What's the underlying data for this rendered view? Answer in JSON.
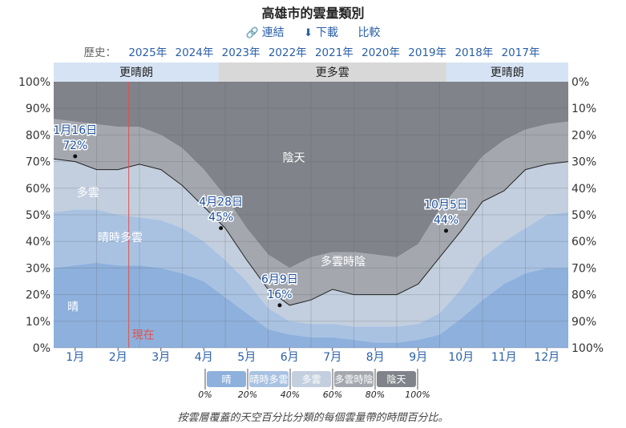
{
  "header": {
    "title": "高雄市的雲量類別",
    "link_label": "連結",
    "download_label": "下載",
    "compare_label": "比較",
    "history_label": "歷史：",
    "years": [
      "2025年",
      "2024年",
      "2023年",
      "2022年",
      "2021年",
      "2020年",
      "2019年",
      "2018年",
      "2017年"
    ]
  },
  "footnote": "按雲層覆蓋的天空百分比分類的每個雲量帶的時間百分比。",
  "colors": {
    "clear": "#8eb0dc",
    "mostly_clear": "#a9c2e2",
    "partly_cloudy": "#c3cfde",
    "mostly_cloudy": "#a4a8ae",
    "overcast": "#80838a",
    "now_line": "#e0524f",
    "label_blue": "#1c4f9c"
  },
  "chart_data": {
    "type": "area",
    "x_unit": "month",
    "x": [
      0.0,
      0.5,
      1.0,
      1.5,
      2.0,
      2.5,
      3.0,
      3.5,
      4.0,
      4.5,
      5.0,
      5.5,
      6.0,
      6.5,
      7.0,
      7.5,
      8.0,
      8.5,
      9.0,
      9.5,
      10.0,
      10.5,
      11.0,
      11.5,
      12.0
    ],
    "series": [
      {
        "name": "晴",
        "key": "clear",
        "values": [
          30,
          31,
          32,
          31,
          31,
          30,
          28,
          25,
          19,
          13,
          7,
          5,
          4,
          4,
          3,
          2,
          2,
          3,
          5,
          11,
          18,
          24,
          28,
          30,
          30
        ]
      },
      {
        "name": "晴時多雲",
        "key": "mostly_clear",
        "values": [
          51,
          52,
          52,
          50,
          49,
          48,
          45,
          40,
          33,
          25,
          15,
          10,
          9,
          9,
          8,
          8,
          8,
          9,
          13,
          22,
          34,
          40,
          45,
          50,
          51
        ]
      },
      {
        "name": "多雲",
        "key": "partly_cloudy",
        "values": [
          71,
          70,
          67,
          67,
          69,
          67,
          61,
          53,
          45,
          33,
          22,
          16,
          18,
          22,
          20,
          20,
          20,
          24,
          34,
          44,
          55,
          59,
          67,
          69,
          70
        ]
      },
      {
        "name": "多雲時陰",
        "key": "mostly_cloudy",
        "values": [
          86,
          85,
          84,
          83,
          83,
          80,
          75,
          67,
          57,
          45,
          35,
          30,
          34,
          36,
          36,
          35,
          34,
          39,
          52,
          62,
          72,
          78,
          82,
          84,
          85
        ]
      },
      {
        "name": "陰天",
        "key": "overcast",
        "values": [
          100,
          100,
          100,
          100,
          100,
          100,
          100,
          100,
          100,
          100,
          100,
          100,
          100,
          100,
          100,
          100,
          100,
          100,
          100,
          100,
          100,
          100,
          100,
          100,
          100
        ]
      }
    ],
    "band_labels": [
      {
        "text": "陰天",
        "month": 5.6,
        "value": 70
      },
      {
        "text": "多雲",
        "month": 0.8,
        "value": 57
      },
      {
        "text": "晴時多雲",
        "month": 1.55,
        "value": 40
      },
      {
        "text": "多雲時陰",
        "month": 6.75,
        "value": 31
      },
      {
        "text": "晴",
        "month": 0.45,
        "value": 14
      }
    ],
    "annotations": [
      {
        "date": "1月16日",
        "value_label": "72%",
        "month": 0.5,
        "value": 72
      },
      {
        "date": "4月28日",
        "value_label": "45%",
        "month": 3.9,
        "value": 45
      },
      {
        "date": "6月9日",
        "value_label": "16%",
        "month": 5.27,
        "value": 16
      },
      {
        "date": "10月5日",
        "value_label": "44%",
        "month": 9.15,
        "value": 44
      }
    ],
    "now": {
      "label": "現在",
      "month": 1.75
    },
    "season_bands": [
      {
        "label": "更晴朗",
        "start": 0.0,
        "end": 3.85
      },
      {
        "label": "更多雲",
        "start": 3.85,
        "end": 9.15
      },
      {
        "label": "更晴朗",
        "start": 9.15,
        "end": 12.0
      }
    ],
    "x_ticks": [
      "1月",
      "2月",
      "3月",
      "4月",
      "5月",
      "6月",
      "7月",
      "8月",
      "9月",
      "10月",
      "11月",
      "12月"
    ],
    "y_left_ticks": [
      "0%",
      "10%",
      "20%",
      "30%",
      "40%",
      "50%",
      "60%",
      "70%",
      "80%",
      "90%",
      "100%"
    ],
    "y_right_ticks": [
      "100%",
      "90%",
      "80%",
      "70%",
      "60%",
      "50%",
      "40%",
      "30%",
      "20%",
      "10%",
      "0%"
    ],
    "ylim": [
      0,
      100
    ],
    "legend": {
      "items": [
        "晴",
        "晴時多雲",
        "多雲",
        "多雲時陰",
        "陰天"
      ],
      "ticks": [
        "0%",
        "20%",
        "40%",
        "60%",
        "80%",
        "100%"
      ],
      "position": "bottom-center"
    },
    "grid": true
  }
}
